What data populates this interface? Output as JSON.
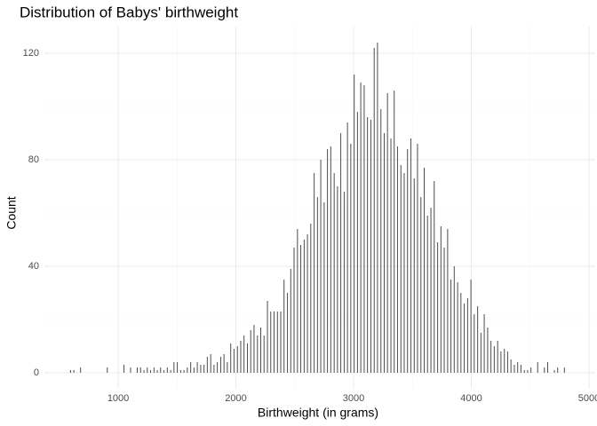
{
  "chart_data": {
    "type": "bar",
    "title": "Distribution of Babys' birthweight",
    "x_label": "Birthweight (in grams)",
    "y_label": "Count",
    "color": "#4d4d4d",
    "grid": true,
    "xlim": [
      373,
      5053
    ],
    "xticks": [
      1000,
      2000,
      3000,
      4000,
      5000
    ],
    "ylim": [
      -6,
      130
    ],
    "yticks": [
      0,
      40,
      80,
      120
    ],
    "x": [
      595,
      623,
      652,
      680,
      708,
      737,
      765,
      793,
      822,
      850,
      879,
      907,
      935,
      964,
      992,
      1020,
      1049,
      1077,
      1105,
      1134,
      1162,
      1190,
      1219,
      1247,
      1275,
      1304,
      1332,
      1360,
      1389,
      1417,
      1446,
      1474,
      1502,
      1531,
      1559,
      1587,
      1616,
      1644,
      1672,
      1701,
      1729,
      1757,
      1786,
      1814,
      1842,
      1871,
      1899,
      1927,
      1956,
      1984,
      2013,
      2041,
      2069,
      2098,
      2126,
      2154,
      2183,
      2211,
      2239,
      2268,
      2296,
      2324,
      2353,
      2381,
      2409,
      2438,
      2466,
      2494,
      2523,
      2551,
      2580,
      2608,
      2636,
      2665,
      2693,
      2721,
      2750,
      2778,
      2806,
      2835,
      2863,
      2891,
      2920,
      2948,
      2976,
      3005,
      3033,
      3061,
      3090,
      3118,
      3147,
      3175,
      3203,
      3232,
      3260,
      3288,
      3317,
      3345,
      3373,
      3402,
      3430,
      3458,
      3487,
      3515,
      3543,
      3572,
      3600,
      3628,
      3657,
      3685,
      3714,
      3742,
      3770,
      3799,
      3827,
      3855,
      3884,
      3912,
      3940,
      3969,
      3997,
      4025,
      4054,
      4082,
      4110,
      4139,
      4167,
      4195,
      4224,
      4252,
      4281,
      4309,
      4337,
      4366,
      4394,
      4422,
      4451,
      4479,
      4507,
      4536,
      4564,
      4592,
      4621,
      4649,
      4677,
      4706,
      4734,
      4762,
      4791
    ],
    "values": [
      1,
      1,
      0,
      2,
      0,
      0,
      0,
      0,
      0,
      0,
      0,
      2,
      0,
      0,
      0,
      0,
      3,
      0,
      2,
      0,
      2,
      2,
      1,
      2,
      1,
      2,
      1,
      2,
      1,
      2,
      1,
      4,
      4,
      1,
      1,
      2,
      4,
      2,
      4,
      3,
      3,
      6,
      7,
      3,
      4,
      6,
      7,
      4,
      11,
      9,
      10,
      12,
      14,
      11,
      16,
      18,
      14,
      17,
      14,
      27,
      23,
      23,
      23,
      23,
      35,
      30,
      39,
      47,
      54,
      48,
      50,
      52,
      56,
      75,
      66,
      80,
      64,
      84,
      85,
      75,
      70,
      90,
      68,
      94,
      86,
      112,
      98,
      109,
      108,
      96,
      95,
      122,
      124,
      99,
      90,
      105,
      88,
      106,
      85,
      78,
      75,
      84,
      88,
      73,
      86,
      66,
      77,
      59,
      62,
      72,
      49,
      55,
      47,
      54,
      35,
      40,
      34,
      30,
      26,
      28,
      35,
      22,
      25,
      15,
      22,
      17,
      12,
      10,
      12,
      8,
      9,
      8,
      5,
      3,
      4,
      3,
      1,
      1,
      2,
      0,
      4,
      0,
      2,
      4,
      0,
      1,
      2,
      0,
      2
    ]
  }
}
